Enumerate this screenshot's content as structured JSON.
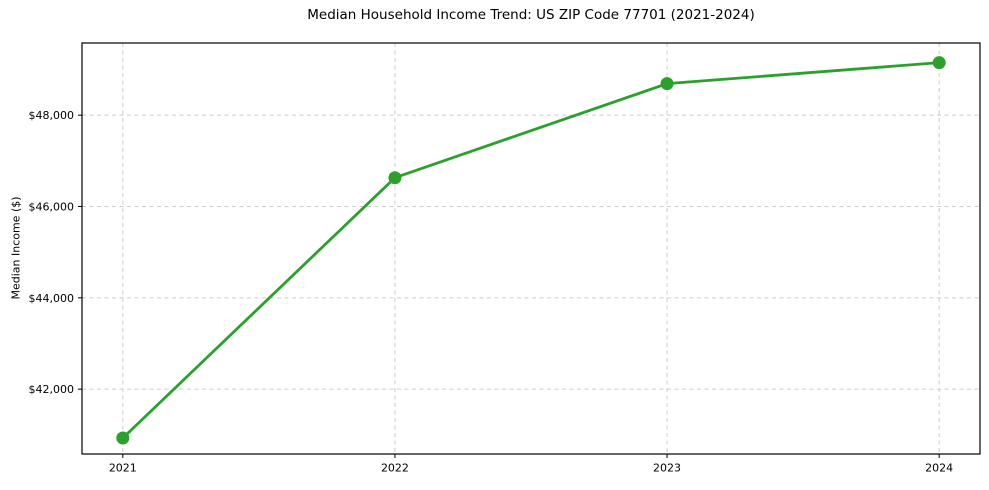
{
  "figure": {
    "background": "#ffffff"
  },
  "chart_data": {
    "type": "line",
    "title": "Median Household Income Trend: US ZIP Code 77701 (2021-2024)",
    "xlabel": "",
    "ylabel": "Median Income ($)",
    "x": [
      2021,
      2022,
      2023,
      2024
    ],
    "x_tick_labels": [
      "2021",
      "2022",
      "2023",
      "2024"
    ],
    "y_ticks": [
      42000,
      44000,
      46000,
      48000
    ],
    "y_tick_labels": [
      "$42,000",
      "$44,000",
      "$46,000",
      "$48,000"
    ],
    "xlim": [
      2020.85,
      2024.15
    ],
    "ylim": [
      40580,
      49580
    ],
    "grid": true,
    "grid_style": "dashed",
    "legend": "none",
    "series": [
      {
        "name": "Median household income",
        "values": [
          40930,
          46630,
          48690,
          49150
        ],
        "color": "#2ca02c",
        "marker": "circle",
        "line_width": 2.8,
        "marker_radius": 6.5
      }
    ],
    "colors": {
      "grid": "#cccccc",
      "axis": "#000000",
      "text": "#000000"
    }
  }
}
